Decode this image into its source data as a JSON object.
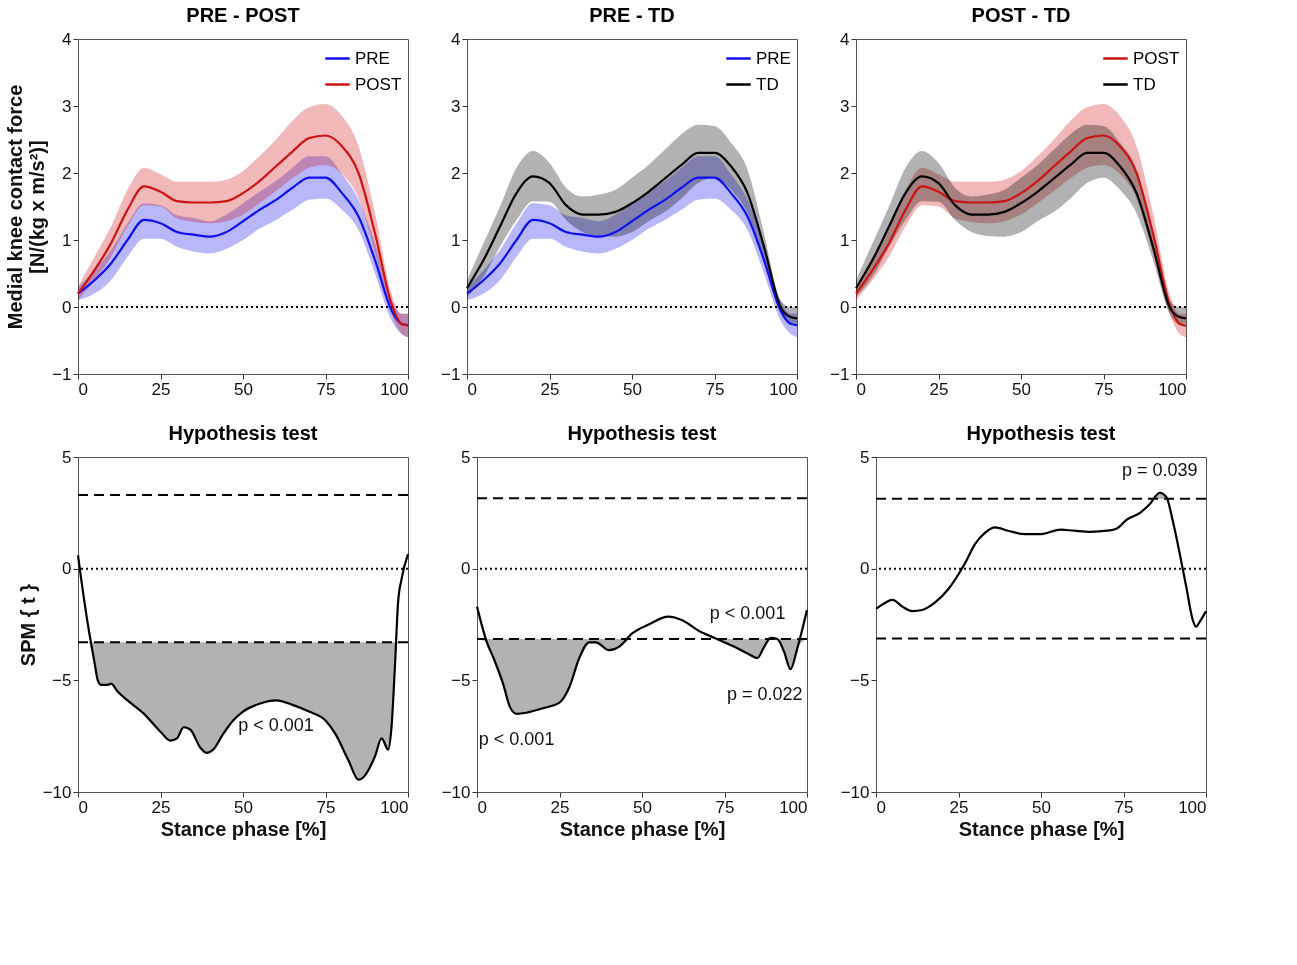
{
  "chart_data": [
    {
      "type": "line",
      "title": "PRE - POST",
      "ylabel": "Medial knee contact force\n[N/(kg x m/s²)]",
      "xlim": [
        0,
        100
      ],
      "xticks": [
        0,
        25,
        50,
        75,
        100
      ],
      "ylim": [
        -1,
        4
      ],
      "yticks": [
        -1,
        0,
        1,
        2,
        3,
        4
      ],
      "legend": "top right",
      "x": [
        0,
        5,
        10,
        15,
        20,
        25,
        30,
        35,
        40,
        45,
        50,
        55,
        60,
        65,
        70,
        75,
        80,
        85,
        90,
        95,
        98,
        100
      ],
      "series": [
        {
          "name": "PRE",
          "color": "#1010f0",
          "values": [
            0.2,
            0.4,
            0.65,
            1.0,
            1.3,
            1.25,
            1.12,
            1.08,
            1.05,
            1.12,
            1.28,
            1.45,
            1.6,
            1.78,
            1.93,
            1.93,
            1.7,
            1.35,
            0.7,
            -0.05,
            -0.25,
            -0.27
          ],
          "lower": [
            0.1,
            0.2,
            0.4,
            0.75,
            1.02,
            1.02,
            0.9,
            0.83,
            0.8,
            0.87,
            1.0,
            1.17,
            1.3,
            1.45,
            1.6,
            1.62,
            1.45,
            1.15,
            0.5,
            -0.2,
            -0.4,
            -0.45
          ],
          "upper": [
            0.3,
            0.55,
            0.85,
            1.25,
            1.55,
            1.52,
            1.37,
            1.33,
            1.28,
            1.38,
            1.55,
            1.72,
            1.88,
            2.08,
            2.25,
            2.25,
            1.98,
            1.6,
            0.95,
            0.1,
            -0.1,
            -0.1
          ]
        },
        {
          "name": "POST",
          "color": "#cc1414",
          "values": [
            0.2,
            0.55,
            0.95,
            1.45,
            1.8,
            1.72,
            1.58,
            1.56,
            1.56,
            1.58,
            1.7,
            1.88,
            2.1,
            2.32,
            2.52,
            2.56,
            2.4,
            2.0,
            1.1,
            0.05,
            -0.25,
            -0.28
          ],
          "lower": [
            0.1,
            0.4,
            0.75,
            1.2,
            1.52,
            1.5,
            1.32,
            1.27,
            1.25,
            1.28,
            1.38,
            1.55,
            1.73,
            1.92,
            2.08,
            2.12,
            1.98,
            1.62,
            0.8,
            -0.1,
            -0.4,
            -0.45
          ],
          "upper": [
            0.3,
            0.75,
            1.2,
            1.75,
            2.08,
            1.98,
            1.87,
            1.87,
            1.87,
            1.9,
            2.03,
            2.25,
            2.5,
            2.78,
            2.98,
            3.03,
            2.85,
            2.4,
            1.4,
            0.2,
            -0.1,
            -0.1
          ]
        }
      ],
      "ref_lines": [
        {
          "axis": "y",
          "value": 0,
          "line_style": "dotted"
        }
      ]
    },
    {
      "type": "line",
      "title": "PRE - TD",
      "xlim": [
        0,
        100
      ],
      "xticks": [
        0,
        25,
        50,
        75,
        100
      ],
      "ylim": [
        -1,
        4
      ],
      "yticks": [
        -1,
        0,
        1,
        2,
        3,
        4
      ],
      "legend": "top right",
      "x": [
        0,
        5,
        10,
        15,
        20,
        25,
        30,
        35,
        40,
        45,
        50,
        55,
        60,
        65,
        70,
        75,
        80,
        85,
        90,
        95,
        98,
        100
      ],
      "series": [
        {
          "name": "PRE",
          "color": "#1010f0",
          "values": [
            0.2,
            0.4,
            0.65,
            1.0,
            1.3,
            1.25,
            1.12,
            1.08,
            1.05,
            1.12,
            1.28,
            1.45,
            1.6,
            1.78,
            1.93,
            1.93,
            1.7,
            1.35,
            0.7,
            -0.05,
            -0.25,
            -0.27
          ],
          "lower": [
            0.1,
            0.2,
            0.4,
            0.75,
            1.02,
            1.02,
            0.9,
            0.83,
            0.8,
            0.87,
            1.0,
            1.17,
            1.3,
            1.45,
            1.6,
            1.62,
            1.45,
            1.15,
            0.5,
            -0.2,
            -0.4,
            -0.45
          ],
          "upper": [
            0.3,
            0.55,
            0.85,
            1.25,
            1.55,
            1.52,
            1.37,
            1.33,
            1.28,
            1.38,
            1.55,
            1.72,
            1.88,
            2.08,
            2.25,
            2.25,
            1.98,
            1.6,
            0.95,
            0.1,
            -0.1,
            -0.1
          ]
        },
        {
          "name": "TD",
          "color": "#000000",
          "values": [
            0.28,
            0.7,
            1.2,
            1.7,
            1.95,
            1.85,
            1.52,
            1.38,
            1.38,
            1.42,
            1.55,
            1.72,
            1.92,
            2.12,
            2.3,
            2.3,
            2.1,
            1.7,
            0.9,
            0.0,
            -0.15,
            -0.17
          ],
          "lower": [
            0.15,
            0.45,
            0.9,
            1.3,
            1.58,
            1.57,
            1.3,
            1.12,
            1.06,
            1.05,
            1.12,
            1.28,
            1.42,
            1.62,
            1.85,
            1.93,
            1.75,
            1.4,
            0.7,
            -0.1,
            -0.25,
            -0.25
          ],
          "upper": [
            0.4,
            0.95,
            1.5,
            2.08,
            2.33,
            2.15,
            1.78,
            1.65,
            1.68,
            1.75,
            1.93,
            2.12,
            2.35,
            2.58,
            2.72,
            2.7,
            2.45,
            2.05,
            1.1,
            0.1,
            0.0,
            0.0
          ]
        }
      ],
      "ref_lines": [
        {
          "axis": "y",
          "value": 0,
          "line_style": "dotted"
        }
      ]
    },
    {
      "type": "line",
      "title": "POST - TD",
      "xlim": [
        0,
        100
      ],
      "xticks": [
        0,
        25,
        50,
        75,
        100
      ],
      "ylim": [
        -1,
        4
      ],
      "yticks": [
        -1,
        0,
        1,
        2,
        3,
        4
      ],
      "legend": "top right",
      "x": [
        0,
        5,
        10,
        15,
        20,
        25,
        30,
        35,
        40,
        45,
        50,
        55,
        60,
        65,
        70,
        75,
        80,
        85,
        90,
        95,
        98,
        100
      ],
      "series": [
        {
          "name": "POST",
          "color": "#cc1414",
          "values": [
            0.2,
            0.55,
            0.95,
            1.45,
            1.8,
            1.72,
            1.58,
            1.56,
            1.56,
            1.58,
            1.7,
            1.88,
            2.1,
            2.32,
            2.52,
            2.56,
            2.4,
            2.0,
            1.1,
            0.05,
            -0.25,
            -0.28
          ],
          "lower": [
            0.1,
            0.4,
            0.75,
            1.2,
            1.52,
            1.5,
            1.32,
            1.27,
            1.25,
            1.28,
            1.38,
            1.55,
            1.73,
            1.92,
            2.08,
            2.12,
            1.98,
            1.62,
            0.8,
            -0.1,
            -0.4,
            -0.45
          ],
          "upper": [
            0.3,
            0.75,
            1.2,
            1.75,
            2.08,
            1.98,
            1.87,
            1.87,
            1.87,
            1.9,
            2.03,
            2.25,
            2.5,
            2.78,
            2.98,
            3.03,
            2.85,
            2.4,
            1.4,
            0.2,
            -0.1,
            -0.1
          ]
        },
        {
          "name": "TD",
          "color": "#000000",
          "values": [
            0.28,
            0.7,
            1.2,
            1.7,
            1.95,
            1.85,
            1.52,
            1.38,
            1.38,
            1.42,
            1.55,
            1.72,
            1.92,
            2.12,
            2.3,
            2.3,
            2.1,
            1.7,
            0.9,
            0.0,
            -0.15,
            -0.17
          ],
          "lower": [
            0.15,
            0.45,
            0.9,
            1.3,
            1.58,
            1.57,
            1.3,
            1.12,
            1.06,
            1.05,
            1.12,
            1.28,
            1.42,
            1.62,
            1.85,
            1.93,
            1.75,
            1.4,
            0.7,
            -0.1,
            -0.25,
            -0.25
          ],
          "upper": [
            0.4,
            0.95,
            1.5,
            2.08,
            2.33,
            2.15,
            1.78,
            1.65,
            1.68,
            1.75,
            1.93,
            2.12,
            2.35,
            2.58,
            2.72,
            2.7,
            2.45,
            2.05,
            1.1,
            0.1,
            0.0,
            0.0
          ]
        }
      ],
      "ref_lines": [
        {
          "axis": "y",
          "value": 0,
          "line_style": "dotted"
        }
      ]
    },
    {
      "type": "line",
      "title": "Hypothesis test",
      "xlabel": "Stance phase [%]",
      "ylabel": "SPM { t }",
      "xlim": [
        0,
        100
      ],
      "xticks": [
        0,
        25,
        50,
        75,
        100
      ],
      "ylim": [
        -10,
        5
      ],
      "yticks": [
        -10,
        -5,
        0,
        5
      ],
      "series": [
        {
          "color": "#000000",
          "x": [
            0,
            1,
            3,
            5,
            6,
            7,
            9,
            10,
            12,
            15,
            20,
            25,
            28,
            30,
            32,
            34,
            37,
            39,
            41,
            44,
            47,
            50,
            55,
            60,
            65,
            70,
            75,
            78,
            82,
            85,
            86,
            90,
            92,
            94,
            95,
            96,
            97,
            98,
            100
          ],
          "values": [
            0.6,
            -0.5,
            -2.5,
            -4.2,
            -5.0,
            -5.2,
            -5.2,
            -5.15,
            -5.5,
            -5.9,
            -6.5,
            -7.3,
            -7.7,
            -7.6,
            -7.1,
            -7.2,
            -8.0,
            -8.25,
            -8.1,
            -7.4,
            -6.8,
            -6.4,
            -6.05,
            -5.9,
            -6.1,
            -6.4,
            -6.8,
            -7.4,
            -8.6,
            -9.45,
            -9.4,
            -8.4,
            -7.6,
            -8.1,
            -7.1,
            -4.5,
            -1.5,
            -0.5,
            0.65
          ],
          "lower": [
            -3.3,
            -3.3,
            -3.3,
            -4.2,
            -5.0,
            -5.2,
            -5.2,
            -5.15,
            -5.5,
            -5.9,
            -6.5,
            -7.3,
            -7.7,
            -7.6,
            -7.1,
            -7.2,
            -8.0,
            -8.25,
            -8.1,
            -7.4,
            -6.8,
            -6.4,
            -6.05,
            -5.9,
            -6.1,
            -6.4,
            -6.8,
            -7.4,
            -8.6,
            -9.45,
            -9.4,
            -8.4,
            -7.6,
            -8.1,
            -7.1,
            -4.5,
            -3.3,
            -3.3,
            -3.3
          ],
          "upper": [
            -3.3,
            -3.3,
            -3.3,
            -3.3,
            -3.3,
            -3.3,
            -3.3,
            -3.3,
            -3.3,
            -3.3,
            -3.3,
            -3.3,
            -3.3,
            -3.3,
            -3.3,
            -3.3,
            -3.3,
            -3.3,
            -3.3,
            -3.3,
            -3.3,
            -3.3,
            -3.3,
            -3.3,
            -3.3,
            -3.3,
            -3.3,
            -3.3,
            -3.3,
            -3.3,
            -3.3,
            -3.3,
            -3.3,
            -3.3,
            -3.3,
            -3.3,
            -3.3,
            -3.3,
            -3.3
          ]
        }
      ],
      "ref_lines": [
        {
          "axis": "y",
          "value": 3.3,
          "line_style": "dashed"
        },
        {
          "axis": "y",
          "value": -3.3,
          "line_style": "dashed"
        },
        {
          "axis": "y",
          "value": 0,
          "line_style": "dotted"
        }
      ],
      "annotations": [
        {
          "text": "p < 0.001",
          "x": 60,
          "y": -5.9
        }
      ]
    },
    {
      "type": "line",
      "title": "Hypothesis test",
      "xlabel": "Stance phase [%]",
      "xlim": [
        0,
        100
      ],
      "xticks": [
        0,
        25,
        50,
        75,
        100
      ],
      "ylim": [
        -10,
        5
      ],
      "yticks": [
        -10,
        -5,
        0,
        5
      ],
      "series": [
        {
          "color": "#000000",
          "x": [
            0,
            3,
            5,
            8,
            10,
            12,
            15,
            20,
            25,
            28,
            31,
            34,
            36,
            40,
            43,
            47,
            52,
            58,
            62,
            68,
            72,
            78,
            82,
            85,
            87,
            89,
            91,
            93,
            95,
            97,
            100
          ],
          "values": [
            -1.7,
            -3.3,
            -4.0,
            -5.2,
            -6.2,
            -6.5,
            -6.45,
            -6.25,
            -6.0,
            -5.3,
            -4.0,
            -3.3,
            -3.3,
            -3.65,
            -3.5,
            -2.9,
            -2.5,
            -2.15,
            -2.3,
            -2.85,
            -3.1,
            -3.5,
            -3.8,
            -4.0,
            -3.5,
            -3.1,
            -3.15,
            -3.7,
            -4.5,
            -3.6,
            -1.85
          ],
          "lower": [
            -3.15,
            -3.3,
            -4.0,
            -5.2,
            -6.2,
            -6.5,
            -6.45,
            -6.25,
            -6.0,
            -5.3,
            -4.0,
            -3.3,
            -3.3,
            -3.65,
            -3.5,
            -3.15,
            -3.15,
            -3.15,
            -3.15,
            -3.15,
            -3.15,
            -3.5,
            -3.8,
            -4.0,
            -3.5,
            -3.15,
            -3.15,
            -3.7,
            -4.5,
            -3.6,
            -3.15
          ],
          "upper": [
            -3.15,
            -3.15,
            -3.15,
            -3.15,
            -3.15,
            -3.15,
            -3.15,
            -3.15,
            -3.15,
            -3.15,
            -3.15,
            -3.15,
            -3.15,
            -3.15,
            -3.15,
            -3.15,
            -3.15,
            -3.15,
            -3.15,
            -3.15,
            -3.15,
            -3.15,
            -3.15,
            -3.15,
            -3.15,
            -3.15,
            -3.15,
            -3.15,
            -3.15,
            -3.15,
            -3.15
          ]
        }
      ],
      "ref_lines": [
        {
          "axis": "y",
          "value": 3.15,
          "line_style": "dashed"
        },
        {
          "axis": "y",
          "value": -3.15,
          "line_style": "dashed"
        },
        {
          "axis": "y",
          "value": 0,
          "line_style": "dotted"
        }
      ],
      "annotations": [
        {
          "text": "p < 0.001",
          "x": 12,
          "y": -6.5
        },
        {
          "text": "p < 0.001",
          "x": 82,
          "y": -3.8
        },
        {
          "text": "p = 0.022",
          "x": 95,
          "y": -4.5
        }
      ]
    },
    {
      "type": "line",
      "title": "Hypothesis test",
      "xlabel": "Stance phase [%]",
      "xlim": [
        0,
        100
      ],
      "xticks": [
        0,
        25,
        50,
        75,
        100
      ],
      "ylim": [
        -10,
        5
      ],
      "yticks": [
        -10,
        -5,
        0,
        5
      ],
      "series": [
        {
          "color": "#000000",
          "x": [
            0,
            2,
            5,
            8,
            11,
            14,
            18,
            22,
            25,
            27,
            30,
            33,
            36,
            40,
            45,
            50,
            56,
            60,
            65,
            70,
            73,
            76,
            80,
            83,
            86,
            88,
            90,
            92,
            94,
            96,
            97,
            98,
            100
          ],
          "values": [
            -1.8,
            -1.6,
            -1.4,
            -1.7,
            -1.9,
            -1.85,
            -1.5,
            -0.9,
            -0.25,
            0.25,
            1.1,
            1.6,
            1.85,
            1.7,
            1.55,
            1.55,
            1.75,
            1.7,
            1.65,
            1.7,
            1.8,
            2.2,
            2.5,
            2.9,
            3.4,
            3.2,
            2.1,
            0.7,
            -0.8,
            -2.3,
            -2.6,
            -2.4,
            -1.9
          ],
          "lower": [
            3.13,
            3.13,
            3.13,
            3.13,
            3.13,
            3.13,
            3.13,
            3.13,
            3.13,
            3.13,
            3.13,
            3.13,
            3.13,
            3.13,
            3.13,
            3.13,
            3.13,
            3.13,
            3.13,
            3.13,
            3.13,
            3.13,
            3.13,
            3.13,
            3.13,
            3.13,
            3.13,
            3.13,
            3.13,
            3.13,
            3.13,
            3.13,
            3.13
          ],
          "upper": [
            3.13,
            3.13,
            3.13,
            3.13,
            3.13,
            3.13,
            3.13,
            3.13,
            3.13,
            3.13,
            3.13,
            3.13,
            3.13,
            3.13,
            3.13,
            3.13,
            3.13,
            3.13,
            3.13,
            3.13,
            3.13,
            3.13,
            3.13,
            3.13,
            3.4,
            3.2,
            3.13,
            3.13,
            3.13,
            3.13,
            3.13,
            3.13,
            3.13
          ]
        }
      ],
      "ref_lines": [
        {
          "axis": "y",
          "value": 3.13,
          "line_style": "dashed"
        },
        {
          "axis": "y",
          "value": -3.13,
          "line_style": "dashed"
        },
        {
          "axis": "y",
          "value": 0,
          "line_style": "dotted"
        }
      ],
      "annotations": [
        {
          "text": "p = 0.039",
          "x": 86,
          "y": 3.4
        }
      ]
    }
  ]
}
